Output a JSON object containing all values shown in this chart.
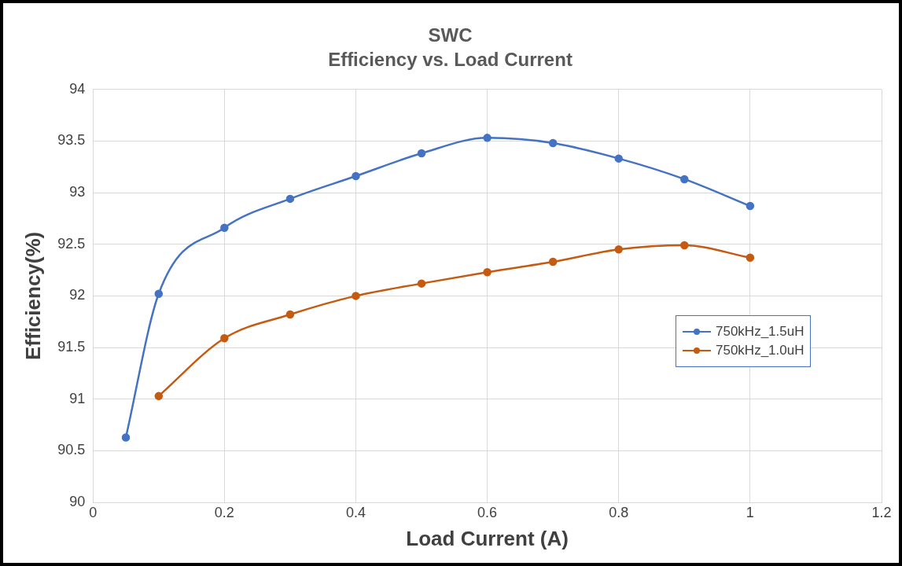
{
  "chart_data": {
    "type": "line",
    "title": "SWC",
    "subtitle": "Efficiency vs. Load Current",
    "xlabel": "Load Current (A)",
    "ylabel": "Efficiency(%)",
    "xlim": [
      0,
      1.2
    ],
    "xticks": [
      0,
      0.2,
      0.4,
      0.6,
      0.8,
      1,
      1.2
    ],
    "ylim": [
      90,
      94
    ],
    "yticks": [
      90,
      90.5,
      91,
      91.5,
      92,
      92.5,
      93,
      93.5,
      94
    ],
    "grid": true,
    "legend": "right",
    "marker": "circle",
    "line_style": "solid",
    "series": [
      {
        "name": "750kHz_1.5uH",
        "color": "#4472c4",
        "x": [
          0.05,
          0.1,
          0.2,
          0.3,
          0.4,
          0.5,
          0.6,
          0.7,
          0.8,
          0.9,
          1
        ],
        "values": [
          90.63,
          92.02,
          92.66,
          92.94,
          93.16,
          93.38,
          93.53,
          93.48,
          93.33,
          93.13,
          92.87
        ]
      },
      {
        "name": "750kHz_1.0uH",
        "color": "#c55a11",
        "x": [
          0.1,
          0.2,
          0.3,
          0.4,
          0.5,
          0.6,
          0.7,
          0.8,
          0.9,
          1
        ],
        "values": [
          91.03,
          91.59,
          91.82,
          92.0,
          92.12,
          92.23,
          92.33,
          92.45,
          92.49,
          92.37
        ]
      }
    ]
  }
}
